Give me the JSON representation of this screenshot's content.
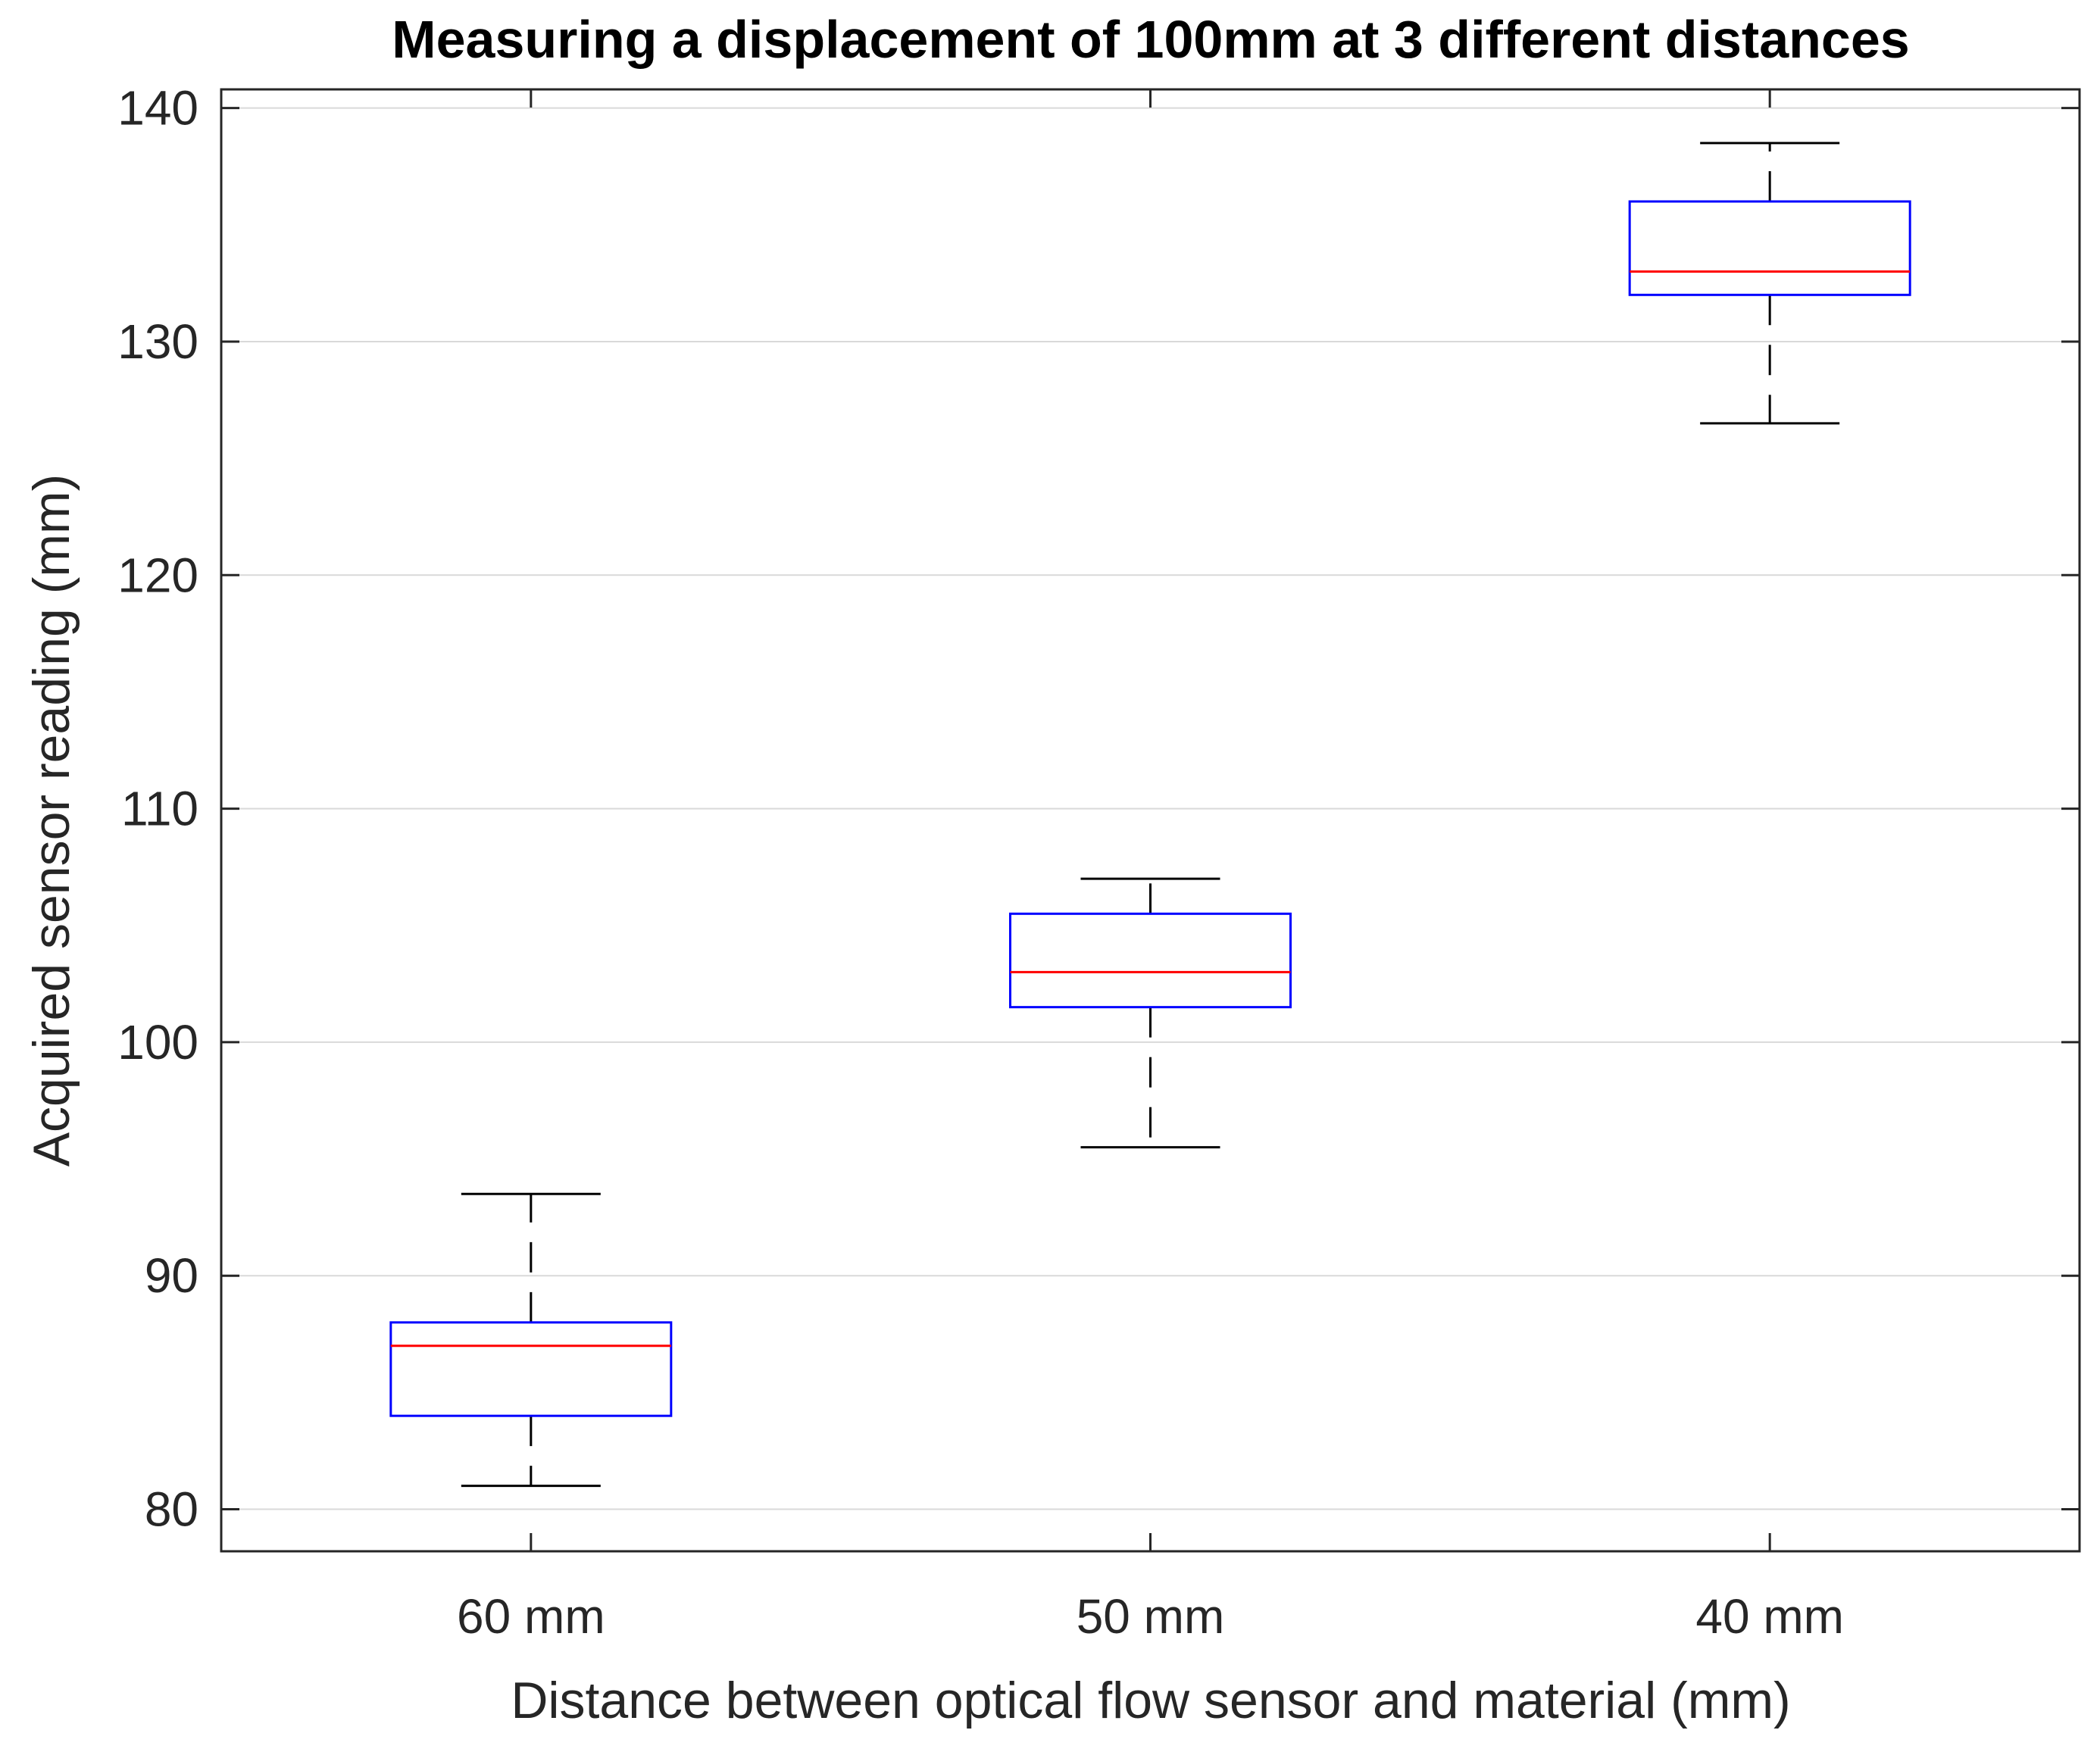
{
  "chart_data": {
    "type": "box",
    "title": "Measuring a displacement of 100mm at 3 different distances",
    "xlabel": "Distance between optical flow sensor and material (mm)",
    "ylabel": "Acquired sensor reading (mm)",
    "categories": [
      "60 mm",
      "50 mm",
      "40 mm"
    ],
    "ylim": [
      78.2,
      140.8
    ],
    "yticks": [
      80,
      90,
      100,
      110,
      120,
      130,
      140
    ],
    "ytick_labels": [
      "80",
      "90",
      "100",
      "110",
      "120",
      "130",
      "140"
    ],
    "grid": true,
    "boxes": [
      {
        "category": "60 mm",
        "min": 81.0,
        "q1": 84.0,
        "median": 87.0,
        "q3": 88.0,
        "max": 93.5
      },
      {
        "category": "50 mm",
        "min": 95.5,
        "q1": 101.5,
        "median": 103.0,
        "q3": 105.5,
        "max": 107.0
      },
      {
        "category": "40 mm",
        "min": 126.5,
        "q1": 132.0,
        "median": 133.0,
        "q3": 136.0,
        "max": 138.5
      }
    ],
    "colors": {
      "box": "#0000ff",
      "median": "#ff0000",
      "whisker": "#000000",
      "grid": "#d9d9d9",
      "axes": "#262626"
    }
  }
}
